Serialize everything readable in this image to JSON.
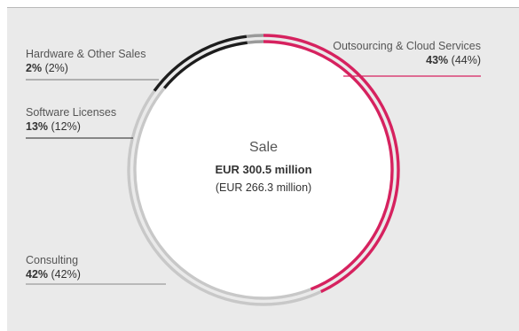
{
  "chart_data": {
    "type": "pie",
    "center": {
      "title": "Sale",
      "total": "EUR 300.5 million",
      "previous": "(EUR 266.3 million)"
    },
    "slices": [
      {
        "name": "Outsourcing & Cloud Services",
        "value": 43,
        "value_label": "43%",
        "previous_value": 44,
        "previous_label": "(44%)",
        "color": "#d6225f"
      },
      {
        "name": "Consulting",
        "value": 42,
        "value_label": "42%",
        "previous_value": 42,
        "previous_label": "(42%)",
        "color": "#c8c8c8"
      },
      {
        "name": "Software Licenses",
        "value": 13,
        "value_label": "13%",
        "previous_value": 12,
        "previous_label": "(12%)",
        "color": "#1d1d1d"
      },
      {
        "name": "Hardware & Other Sales",
        "value": 2,
        "value_label": "2%",
        "previous_value": 2,
        "previous_label": "(2%)",
        "color": "#9a9a9a"
      }
    ]
  }
}
